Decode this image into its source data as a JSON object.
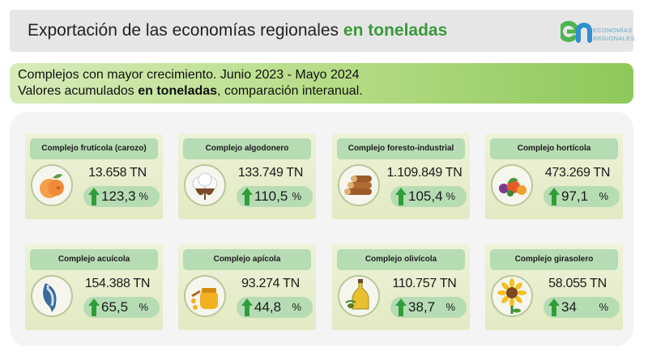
{
  "header": {
    "title_main": "Exportación de las economías regionales",
    "title_bold": "en toneladas",
    "logo_line1": "ECONOMÍAS",
    "logo_line2": "REGIONALES",
    "logo_colors": [
      "#4fb44f",
      "#2e8fd0"
    ]
  },
  "subtitle": {
    "line1": "Complejos con mayor crecimiento. Junio 2023 - Mayo 2024",
    "line2_pre": "Valores acumulados ",
    "line2_bold": "en toneladas",
    "line2_post": ", comparación interanual."
  },
  "percent_unit": "%",
  "cards": [
    {
      "title": "Complejo frutícola (carozo)",
      "value": "13.658 TN",
      "growth": "123,3",
      "icon": "peach-icon"
    },
    {
      "title": "Complejo algodonero",
      "value": "133.749 TN",
      "growth": "110,5",
      "icon": "cotton-icon"
    },
    {
      "title": "Complejo foresto-industrial",
      "value": "1.109.849 TN",
      "growth": "105,4",
      "icon": "logs-icon"
    },
    {
      "title": "Complejo hortícola",
      "value": "473.269 TN",
      "growth": "97,1",
      "icon": "vegetables-icon"
    },
    {
      "title": "Complejo acuícola",
      "value": "154.388 TN",
      "growth": "65,5",
      "icon": "fish-icon"
    },
    {
      "title": "Complejo apícola",
      "value": "93.274 TN",
      "growth": "44,8",
      "icon": "honey-icon"
    },
    {
      "title": "Complejo olivícola",
      "value": "110.757 TN",
      "growth": "38,7",
      "icon": "olive-oil-icon"
    },
    {
      "title": "Complejo girasolero",
      "value": "58.055 TN",
      "growth": "34",
      "icon": "sunflower-icon"
    }
  ],
  "colors": {
    "accent_green": "#3a9a3a",
    "pill_green": "#b6dcb4",
    "arrow_green": "#2f9e3a"
  }
}
